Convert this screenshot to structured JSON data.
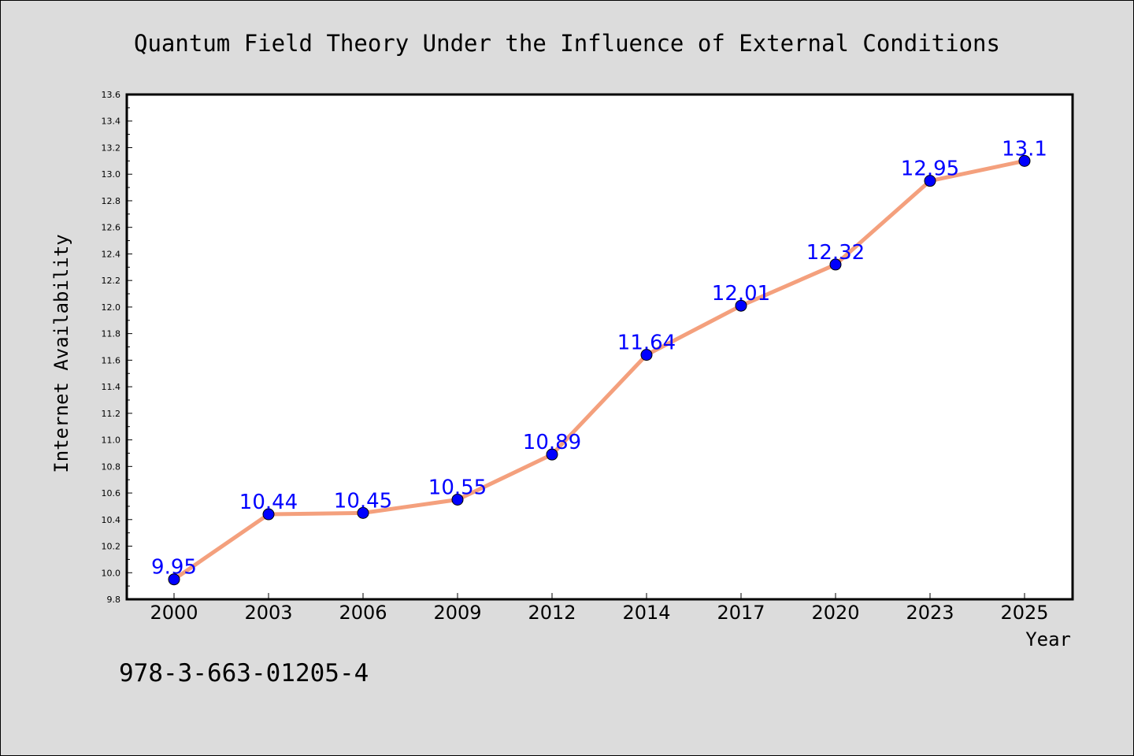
{
  "chart_data": {
    "type": "line",
    "title": "Quantum Field Theory Under the Influence of External Conditions",
    "xlabel": "Year",
    "ylabel": "Internet Availability",
    "categories": [
      "2000",
      "2003",
      "2006",
      "2009",
      "2012",
      "2014",
      "2017",
      "2020",
      "2023",
      "2025"
    ],
    "series": [
      {
        "values": [
          9.95,
          10.44,
          10.45,
          10.55,
          10.89,
          11.64,
          12.01,
          12.32,
          12.95,
          13.1
        ],
        "labels": [
          "9.95",
          "10.44",
          "10.45",
          "10.55",
          "10.89",
          "11.64",
          "12.01",
          "12.32",
          "12.95",
          "13.1"
        ],
        "line_color": "#f4a07d",
        "marker_color": "#0000ff"
      }
    ],
    "ylim": [
      9.8,
      13.6
    ],
    "yticks": [
      "9.8",
      "10.0",
      "10.2",
      "10.4",
      "10.6",
      "10.8",
      "11.0",
      "11.2",
      "11.4",
      "11.6",
      "11.8",
      "12.0",
      "12.2",
      "12.4",
      "12.6",
      "12.8",
      "13.0",
      "13.2",
      "13.4",
      "13.6"
    ],
    "grid": false,
    "legend": "none",
    "background_color": "#dcdcdc",
    "plot_background_color": "#ffffff"
  },
  "annotation": {
    "isbn": "978-3-663-01205-4"
  }
}
